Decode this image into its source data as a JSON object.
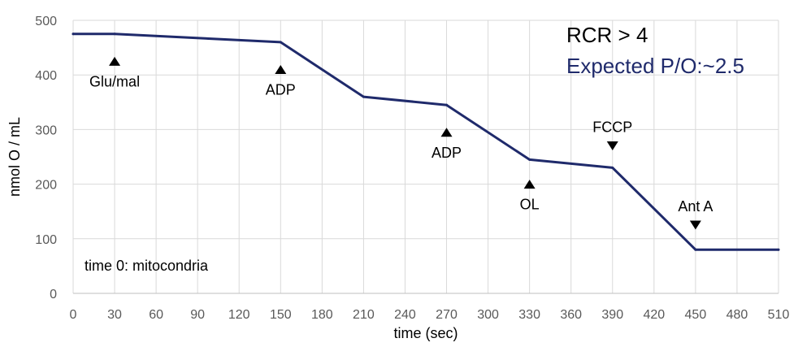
{
  "chart_data": {
    "type": "line",
    "title": "",
    "xlabel": "time (sec)",
    "ylabel": "nmol O / mL",
    "xlim": [
      0,
      510
    ],
    "ylim": [
      0,
      500
    ],
    "x_ticks": [
      0,
      30,
      60,
      90,
      120,
      150,
      180,
      210,
      240,
      270,
      300,
      330,
      360,
      390,
      420,
      450,
      480,
      510
    ],
    "y_ticks": [
      0,
      100,
      200,
      300,
      400,
      500
    ],
    "grid": true,
    "series": [
      {
        "color": "#1f2a6b",
        "x": [
          0,
          30,
          150,
          210,
          270,
          330,
          390,
          450,
          510
        ],
        "y": [
          475,
          475,
          460,
          360,
          345,
          245,
          230,
          80,
          80
        ]
      }
    ],
    "annotations": [
      {
        "text": "Glu/mal",
        "x": 30,
        "y": 425,
        "marker": "up"
      },
      {
        "text": "ADP",
        "x": 150,
        "y": 410,
        "marker": "up"
      },
      {
        "text": "ADP",
        "x": 270,
        "y": 295,
        "marker": "up"
      },
      {
        "text": "OL",
        "x": 330,
        "y": 200,
        "marker": "up"
      },
      {
        "text": "FCCP",
        "x": 390,
        "y": 270,
        "marker": "down"
      },
      {
        "text": "Ant A",
        "x": 450,
        "y": 125,
        "marker": "down"
      }
    ],
    "info_lines": [
      {
        "text": "RCR > 4",
        "color": "#000000"
      },
      {
        "text": "Expected P/O:~2.5",
        "color": "#1f2a6b"
      }
    ],
    "corner_note": "time 0: mitocondria"
  }
}
